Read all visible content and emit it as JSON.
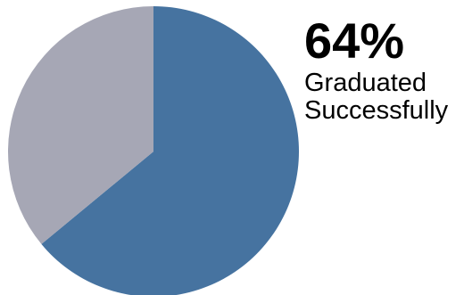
{
  "callout": {
    "value": "64%",
    "line1": "Graduated",
    "line2": "Successfully"
  },
  "chart_data": {
    "type": "pie",
    "slices": [
      {
        "value": 64,
        "color": "#4673a0"
      },
      {
        "value": 36,
        "color": "#a6a7b5"
      }
    ],
    "start_angle_deg": 0,
    "direction": "clockwise"
  }
}
